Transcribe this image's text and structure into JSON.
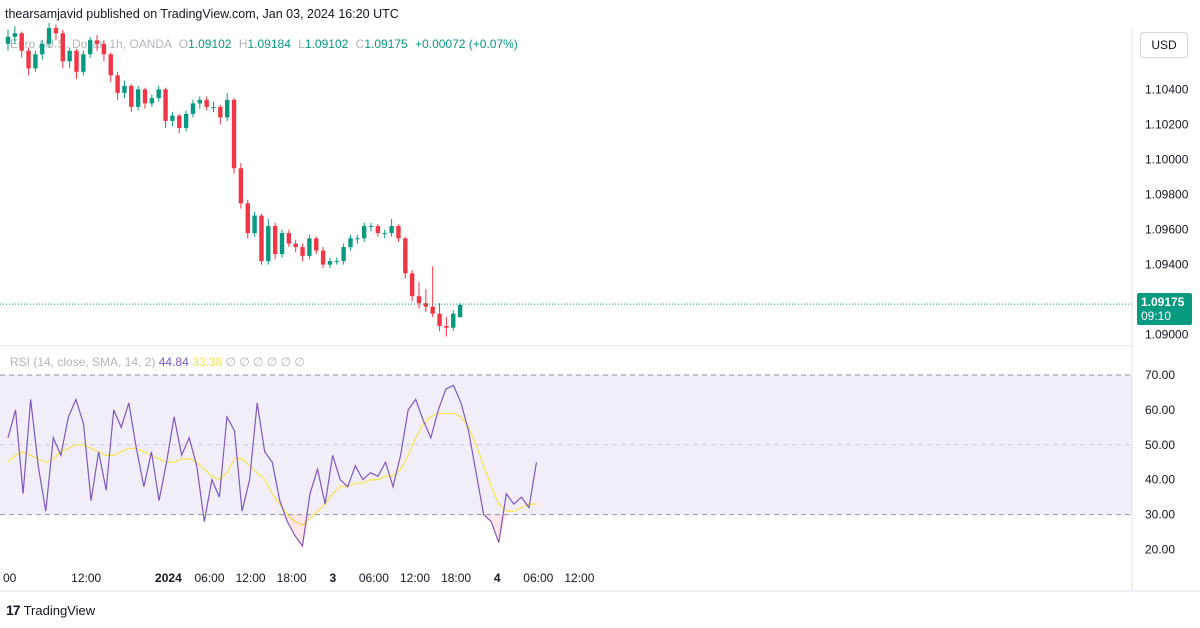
{
  "header": {
    "published_text": "thearsamjavid published on TradingView.com, Jan 03, 2024 16:20 UTC"
  },
  "legend": {
    "symbol": "Euro / U.S. Dollar, 1h, OANDA",
    "o_label": "O",
    "o_value": "1.09102",
    "h_label": "H",
    "h_value": "1.09184",
    "l_label": "L",
    "l_value": "1.09102",
    "c_label": "C",
    "c_value": "1.09175",
    "change": "+0.00072 (+0.07%)"
  },
  "currency_button": "USD",
  "price_tag": {
    "price": "1.09175",
    "countdown": "09:10"
  },
  "rsi_legend": {
    "label": "RSI (14, close, SMA, 14, 2)",
    "rsi_value": "44.84",
    "ma_value": "33.38",
    "empty_values": "∅ ∅ ∅ ∅ ∅ ∅"
  },
  "footer": {
    "logo_mark": "17",
    "brand": "TradingView"
  },
  "colors": {
    "up": "#089981",
    "down": "#f23645",
    "rsi_line": "#7e57c2",
    "rsi_ma": "#f7e34b",
    "rsi_band": "#7e57c2",
    "grid_text": "#131722"
  },
  "chart_data": [
    {
      "type": "candlestick",
      "title": "Euro / U.S. Dollar, 1h, OANDA",
      "y_ticks": [
        "1.10400",
        "1.10200",
        "1.10000",
        "1.09800",
        "1.09600",
        "1.09400",
        "1.09000"
      ],
      "y_tick_values": [
        1.104,
        1.102,
        1.1,
        1.098,
        1.096,
        1.094,
        1.09
      ],
      "ylim": [
        1.0897,
        1.1075
      ],
      "x_ticks": [
        {
          "label": "00",
          "t": 0
        },
        {
          "label": "12:00",
          "t": 12
        },
        {
          "label": "2024",
          "t": 24
        },
        {
          "label": "06:00",
          "t": 30
        },
        {
          "label": "12:00",
          "t": 36
        },
        {
          "label": "18:00",
          "t": 42
        },
        {
          "label": "3",
          "t": 48
        },
        {
          "label": "06:00",
          "t": 54
        },
        {
          "label": "12:00",
          "t": 60
        },
        {
          "label": "18:00",
          "t": 66
        },
        {
          "label": "4",
          "t": 72
        },
        {
          "label": "06:00",
          "t": 78
        },
        {
          "label": "12:00",
          "t": 84
        }
      ],
      "last_price": 1.09175,
      "close_path": [
        1.107,
        1.1072,
        1.1062,
        1.1052,
        1.106,
        1.1066,
        1.1075,
        1.1072,
        1.1056,
        1.1062,
        1.105,
        1.106,
        1.1068,
        1.1066,
        1.106,
        1.1048,
        1.1038,
        1.1042,
        1.103,
        1.104,
        1.1032,
        1.1035,
        1.104,
        1.1022,
        1.1025,
        1.1018,
        1.1026,
        1.1032,
        1.1034,
        1.103,
        1.103,
        1.1024,
        1.1034,
        1.0995,
        1.0975,
        1.0958,
        1.0968,
        1.0942,
        1.0962,
        1.0946,
        1.0958,
        1.0952,
        1.095,
        1.0945,
        1.0955,
        1.0948,
        1.094,
        1.0942,
        1.0942,
        1.095,
        1.0955,
        1.0955,
        1.0962,
        1.0962,
        1.0958,
        1.0958,
        1.0962,
        1.0955,
        1.0935,
        1.0922,
        1.0918,
        1.0916,
        1.0912,
        1.0905,
        1.0904,
        1.0912,
        1.0917
      ],
      "ohlc": [
        [
          1.1066,
          1.1074,
          1.1062,
          1.107
        ],
        [
          1.107,
          1.1076,
          1.1066,
          1.1072
        ],
        [
          1.1072,
          1.1073,
          1.1058,
          1.1062
        ],
        [
          1.1062,
          1.1064,
          1.1048,
          1.1052
        ],
        [
          1.1052,
          1.1062,
          1.105,
          1.106
        ],
        [
          1.106,
          1.1068,
          1.1057,
          1.1066
        ],
        [
          1.1066,
          1.1078,
          1.1064,
          1.1075
        ],
        [
          1.1075,
          1.1077,
          1.1068,
          1.1072
        ],
        [
          1.1072,
          1.1074,
          1.1052,
          1.1056
        ],
        [
          1.1056,
          1.1064,
          1.1052,
          1.1062
        ],
        [
          1.1062,
          1.1063,
          1.1046,
          1.105
        ],
        [
          1.105,
          1.1062,
          1.1048,
          1.106
        ],
        [
          1.106,
          1.107,
          1.1058,
          1.1068
        ],
        [
          1.1068,
          1.1071,
          1.1062,
          1.1066
        ],
        [
          1.1066,
          1.1068,
          1.1056,
          1.106
        ],
        [
          1.106,
          1.1061,
          1.1044,
          1.1048
        ],
        [
          1.1048,
          1.105,
          1.1034,
          1.1038
        ],
        [
          1.1038,
          1.1045,
          1.1035,
          1.1042
        ],
        [
          1.1042,
          1.1043,
          1.1027,
          1.103
        ],
        [
          1.103,
          1.1042,
          1.1028,
          1.104
        ],
        [
          1.104,
          1.1041,
          1.1029,
          1.1032
        ],
        [
          1.1032,
          1.1037,
          1.103,
          1.1035
        ],
        [
          1.1035,
          1.1042,
          1.1033,
          1.104
        ],
        [
          1.104,
          1.1041,
          1.1018,
          1.1022
        ],
        [
          1.1022,
          1.1027,
          1.1019,
          1.1025
        ],
        [
          1.1025,
          1.1026,
          1.1015,
          1.1018
        ],
        [
          1.1018,
          1.1028,
          1.1016,
          1.1026
        ],
        [
          1.1026,
          1.1034,
          1.1024,
          1.1032
        ],
        [
          1.1032,
          1.1036,
          1.1029,
          1.1034
        ],
        [
          1.1034,
          1.1036,
          1.1028,
          1.103
        ],
        [
          1.103,
          1.1033,
          1.1027,
          1.103
        ],
        [
          1.103,
          1.1031,
          1.102,
          1.1024
        ],
        [
          1.1024,
          1.1038,
          1.1022,
          1.1034
        ],
        [
          1.1034,
          1.1035,
          1.0992,
          1.0995
        ],
        [
          1.0995,
          1.0998,
          1.0972,
          1.0975
        ],
        [
          1.0975,
          1.0977,
          1.0955,
          1.0958
        ],
        [
          1.0958,
          1.097,
          1.0956,
          1.0968
        ],
        [
          1.0968,
          1.0969,
          1.094,
          1.0942
        ],
        [
          1.0942,
          1.0966,
          1.094,
          1.0962
        ],
        [
          1.0962,
          1.0964,
          1.0943,
          1.0946
        ],
        [
          1.0946,
          1.096,
          1.0944,
          1.0958
        ],
        [
          1.0958,
          1.096,
          1.095,
          1.0952
        ],
        [
          1.0952,
          1.0954,
          1.0947,
          1.095
        ],
        [
          1.095,
          1.0952,
          1.0942,
          1.0945
        ],
        [
          1.0945,
          1.0957,
          1.0943,
          1.0955
        ],
        [
          1.0955,
          1.0956,
          1.0946,
          1.0948
        ],
        [
          1.0948,
          1.095,
          1.0938,
          1.094
        ],
        [
          1.094,
          1.0944,
          1.0938,
          1.0942
        ],
        [
          1.0942,
          1.0944,
          1.094,
          1.0942
        ],
        [
          1.0942,
          1.0952,
          1.094,
          1.095
        ],
        [
          1.095,
          1.0957,
          1.0948,
          1.0955
        ],
        [
          1.0955,
          1.0957,
          1.0952,
          1.0955
        ],
        [
          1.0955,
          1.0964,
          1.0953,
          1.0962
        ],
        [
          1.0962,
          1.0964,
          1.0959,
          1.0962
        ],
        [
          1.0962,
          1.0963,
          1.0956,
          1.0958
        ],
        [
          1.0958,
          1.096,
          1.0955,
          1.0958
        ],
        [
          1.0958,
          1.0966,
          1.0956,
          1.0962
        ],
        [
          1.0962,
          1.0963,
          1.0953,
          1.0955
        ],
        [
          1.0955,
          1.0956,
          1.0932,
          1.0935
        ],
        [
          1.0935,
          1.0937,
          1.0919,
          1.0922
        ],
        [
          1.0922,
          1.093,
          1.0915,
          1.0918
        ],
        [
          1.0918,
          1.0926,
          1.0913,
          1.0916
        ],
        [
          1.0916,
          1.0939,
          1.091,
          1.0912
        ],
        [
          1.0912,
          1.0918,
          1.0902,
          1.0905
        ],
        [
          1.0905,
          1.091,
          1.0899,
          1.0904
        ],
        [
          1.0904,
          1.0914,
          1.0902,
          1.0912
        ],
        [
          1.091,
          1.0918,
          1.091,
          1.0917
        ]
      ]
    },
    {
      "type": "line",
      "title": "RSI (14, close, SMA, 14, 2)",
      "y_ticks": [
        "70.00",
        "60.00",
        "50.00",
        "40.00",
        "30.00",
        "20.00"
      ],
      "y_tick_values": [
        70,
        60,
        50,
        40,
        30,
        20
      ],
      "ylim": [
        17,
        72
      ],
      "bands": {
        "upper": 70,
        "middle": 50,
        "lower": 30
      },
      "series": [
        {
          "name": "RSI",
          "values": [
            52,
            60,
            36,
            63,
            44,
            31,
            52,
            47,
            58,
            63,
            56,
            34,
            48,
            37,
            60,
            55,
            62,
            49,
            38,
            48,
            34,
            45,
            58,
            47,
            52,
            44,
            28,
            40,
            35,
            58,
            54,
            31,
            40,
            62,
            48,
            45,
            34,
            28,
            24,
            21,
            36,
            43,
            33,
            47,
            40,
            38,
            44,
            40,
            42,
            41,
            45,
            38,
            47,
            60,
            63,
            57,
            52,
            60,
            66,
            67,
            62,
            54,
            42,
            30,
            28,
            22,
            36,
            33,
            35,
            32,
            45
          ]
        },
        {
          "name": "RSI-MA",
          "values": [
            45,
            47,
            48,
            47,
            46,
            45,
            46,
            48,
            49,
            50,
            50,
            49,
            48,
            47,
            47,
            48,
            49,
            49,
            48,
            47,
            46,
            45,
            45,
            46,
            46,
            45,
            43,
            41,
            40,
            42,
            46,
            46,
            44,
            42,
            40,
            36,
            33,
            30,
            28,
            27,
            29,
            31,
            33,
            36,
            38,
            38,
            39,
            39,
            40,
            40,
            41,
            41,
            43,
            47,
            52,
            56,
            58,
            59,
            59,
            59,
            58,
            55,
            50,
            44,
            38,
            33,
            31,
            31,
            32,
            33,
            33
          ]
        }
      ]
    }
  ]
}
